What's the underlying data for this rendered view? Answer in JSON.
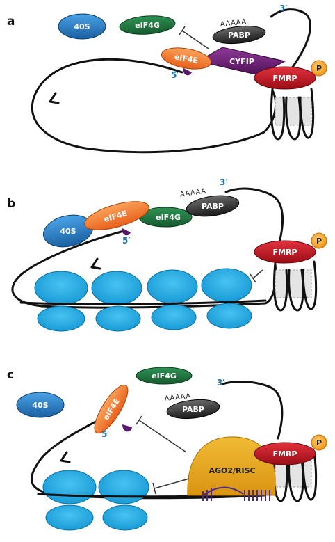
{
  "panels": [
    {
      "letter": "a",
      "labels": {
        "p40s": "40S",
        "eif4g": "eIF4G",
        "pabp": "PABP",
        "eif4e": "eIF4E",
        "cyfip": "CYFIP",
        "fmrp": "FMRP",
        "p": "P",
        "polya": "AAAAA",
        "five": "5′",
        "three": "3′"
      }
    },
    {
      "letter": "b",
      "labels": {
        "p40s": "40S",
        "eif4e": "eIF4E",
        "eif4g": "eIF4G",
        "pabp": "PABP",
        "fmrp": "FMRP",
        "p": "P",
        "polya": "AAAAA",
        "five": "5′",
        "three": "3′"
      }
    },
    {
      "letter": "c",
      "labels": {
        "p40s": "40S",
        "eif4g": "eIF4G",
        "eif4e": "eIF4E",
        "pabp": "PABP",
        "ago": "AGO2/RISC",
        "fmrp": "FMRP",
        "p": "P",
        "polya": "AAAAA",
        "five": "5′",
        "three": "3′"
      }
    }
  ],
  "colors": {
    "p40s": "#1f6fb5",
    "eif4g": "#1f6b3a",
    "pabp": "#2b2b2b",
    "eif4e": "#f07a2a",
    "cyfip": "#6b1f73",
    "fmrp": "#c0121e",
    "p": "#f4a21b",
    "ribosome": "#23a9e1",
    "ago": "#e2a41a",
    "cap": "#5a1a6b"
  }
}
